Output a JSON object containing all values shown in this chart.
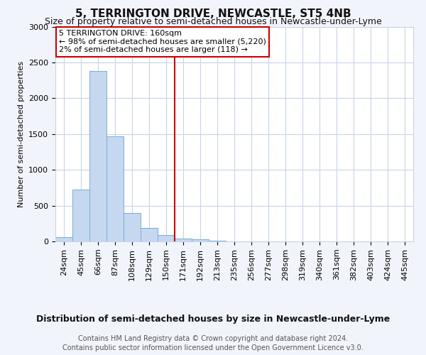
{
  "title": "5, TERRINGTON DRIVE, NEWCASTLE, ST5 4NB",
  "subtitle": "Size of property relative to semi-detached houses in Newcastle-under-Lyme",
  "xlabel_bottom": "Distribution of semi-detached houses by size in Newcastle-under-Lyme",
  "ylabel": "Number of semi-detached properties",
  "bar_labels": [
    "24sqm",
    "45sqm",
    "66sqm",
    "87sqm",
    "108sqm",
    "129sqm",
    "150sqm",
    "171sqm",
    "192sqm",
    "213sqm",
    "235sqm",
    "256sqm",
    "277sqm",
    "298sqm",
    "319sqm",
    "340sqm",
    "361sqm",
    "382sqm",
    "403sqm",
    "424sqm",
    "445sqm"
  ],
  "bar_values": [
    55,
    720,
    2380,
    1470,
    400,
    185,
    90,
    40,
    25,
    5,
    0,
    0,
    0,
    0,
    0,
    0,
    0,
    0,
    0,
    0,
    0
  ],
  "bar_color": "#c5d8f0",
  "bar_edge_color": "#7aadd4",
  "vline_color": "#cc0000",
  "vline_pos": 6.5,
  "ylim": [
    0,
    3000
  ],
  "yticks": [
    0,
    500,
    1000,
    1500,
    2000,
    2500,
    3000
  ],
  "annotation_title": "5 TERRINGTON DRIVE: 160sqm",
  "annotation_line1": "← 98% of semi-detached houses are smaller (5,220)",
  "annotation_line2": "2% of semi-detached houses are larger (118) →",
  "annotation_box_color": "#cc0000",
  "footer_line1": "Contains HM Land Registry data © Crown copyright and database right 2024.",
  "footer_line2": "Contains public sector information licensed under the Open Government Licence v3.0.",
  "background_color": "#f2f4fb",
  "plot_background": "#ffffff",
  "grid_color": "#c8d4e8",
  "title_fontsize": 11,
  "subtitle_fontsize": 9,
  "ylabel_fontsize": 8,
  "tick_fontsize": 8,
  "ann_fontsize": 8,
  "xlabel_fontsize": 9,
  "footer_fontsize": 7
}
